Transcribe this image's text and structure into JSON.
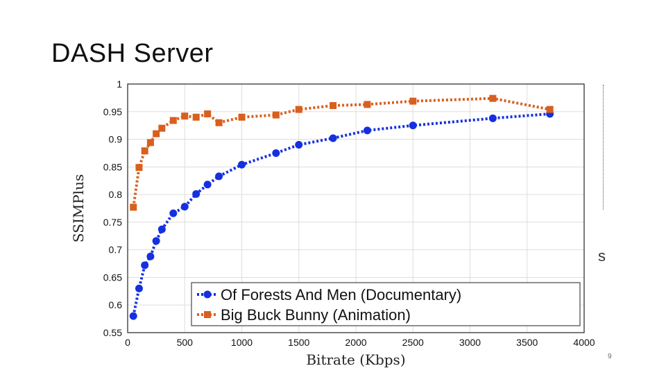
{
  "slide": {
    "title": "DASH Server",
    "page_number": "9",
    "stray_glyph": "s"
  },
  "chart_data": {
    "type": "line",
    "xlabel": "Bitrate (Kbps)",
    "ylabel": "SSIMPlus",
    "xlim": [
      0,
      4000
    ],
    "ylim": [
      0.55,
      1
    ],
    "xticks": [
      0,
      500,
      1000,
      1500,
      2000,
      2500,
      3000,
      3500,
      4000
    ],
    "yticks": [
      0.55,
      0.6,
      0.65,
      0.7,
      0.75,
      0.8,
      0.85,
      0.9,
      0.95,
      1
    ],
    "ytick_labels": [
      "0.55",
      "0.6",
      "0.65",
      "0.7",
      "0.75",
      "0.8",
      "0.85",
      "0.9",
      "0.95",
      "1"
    ],
    "grid": true,
    "legend_position": "bottom-right",
    "series": [
      {
        "name": "Of Forests And Men (Documentary)",
        "color": "#1530e0",
        "marker": "circle",
        "line_style": "dotted",
        "x": [
          50,
          100,
          150,
          200,
          250,
          300,
          400,
          500,
          600,
          700,
          800,
          1000,
          1300,
          1500,
          1800,
          2100,
          2500,
          3200,
          3700
        ],
        "y": [
          0.58,
          0.63,
          0.672,
          0.688,
          0.716,
          0.737,
          0.766,
          0.778,
          0.801,
          0.818,
          0.833,
          0.854,
          0.875,
          0.89,
          0.902,
          0.916,
          0.925,
          0.938,
          0.946
        ]
      },
      {
        "name": "Big Buck Bunny (Animation)",
        "color": "#d95f1e",
        "marker": "square",
        "line_style": "dotted",
        "x": [
          50,
          100,
          150,
          200,
          250,
          300,
          400,
          500,
          600,
          700,
          800,
          1000,
          1300,
          1500,
          1800,
          2100,
          2500,
          3200,
          3700
        ],
        "y": [
          0.777,
          0.849,
          0.879,
          0.894,
          0.91,
          0.92,
          0.934,
          0.942,
          0.94,
          0.946,
          0.93,
          0.94,
          0.944,
          0.954,
          0.961,
          0.963,
          0.969,
          0.974,
          0.954
        ]
      }
    ]
  }
}
